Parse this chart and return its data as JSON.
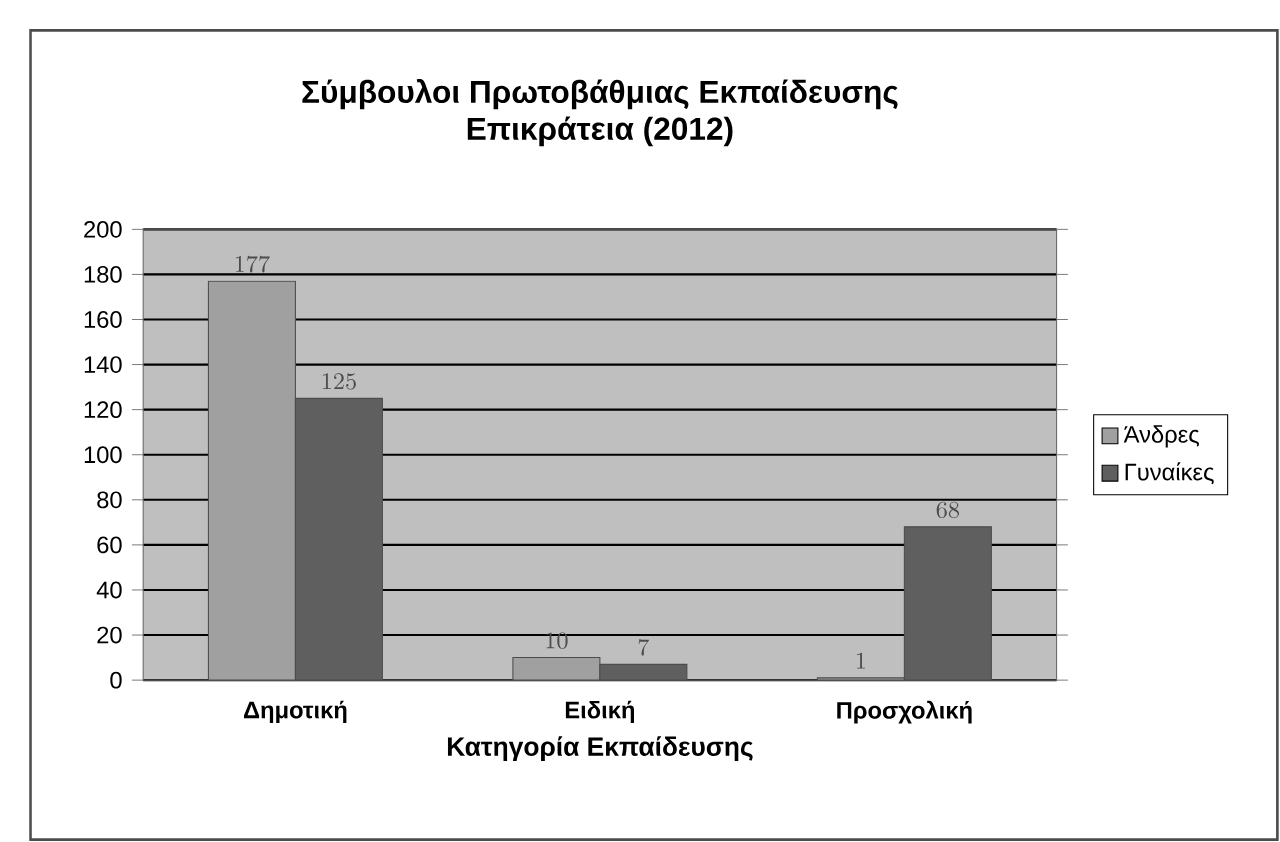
{
  "chart_data": {
    "type": "bar",
    "title": "Σύμβουλοι Πρωτοβάθμιας Εκπαίδευσης\nΕπικράτεια (2012)",
    "xlabel": "Κατηγορία Εκπαίδευσης",
    "categories": [
      "Δημοτική",
      "Ειδική",
      "Προσχολική"
    ],
    "series": [
      {
        "name": "Άνδρες",
        "color": "#a0a0a0",
        "values": [
          177,
          10,
          1
        ]
      },
      {
        "name": "Γυναίκες",
        "color": "#5f5f5f",
        "values": [
          125,
          7,
          68
        ]
      }
    ],
    "ylim": [
      0,
      200
    ],
    "yticks": [
      0,
      20,
      40,
      60,
      80,
      100,
      120,
      140,
      160,
      180,
      200
    ],
    "grid": "y",
    "legend": "right",
    "data_labels": true
  }
}
